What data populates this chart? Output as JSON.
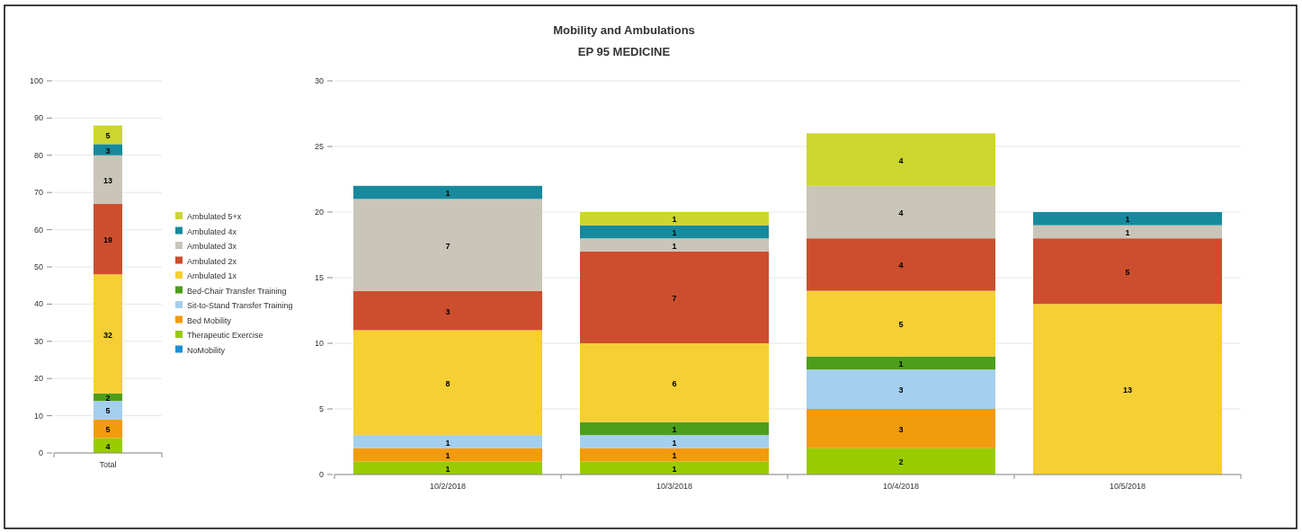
{
  "chart_data": [
    {
      "type": "bar",
      "stacked": true,
      "categories": [
        "Total"
      ],
      "ylim": [
        0,
        100
      ],
      "yticks": [
        0,
        10,
        20,
        30,
        40,
        50,
        60,
        70,
        80,
        90,
        100
      ],
      "grid": "y",
      "data_labels": true,
      "legend": "right",
      "series": [
        {
          "name": "NoMobility",
          "color": "#1a8fd6",
          "values": [
            null
          ]
        },
        {
          "name": "Therapeutic Exercise",
          "color": "#99cc00",
          "values": [
            4
          ]
        },
        {
          "name": "Bed Mobility",
          "color": "#f29b0c",
          "values": [
            5
          ]
        },
        {
          "name": "Sit-to-Stand Transfer Training",
          "color": "#a5cfee",
          "values": [
            5
          ]
        },
        {
          "name": "Bed-Chair Transfer Training",
          "color": "#4d9e1a",
          "values": [
            2
          ]
        },
        {
          "name": "Ambulated 1x",
          "color": "#f5cf33",
          "values": [
            32
          ]
        },
        {
          "name": "Ambulated 2x",
          "color": "#cc4e2e",
          "values": [
            19
          ]
        },
        {
          "name": "Ambulated 3x",
          "color": "#c9c5b9",
          "values": [
            13
          ]
        },
        {
          "name": "Ambulated 4x",
          "color": "#168a9c",
          "values": [
            3
          ]
        },
        {
          "name": "Ambulated 5+x",
          "color": "#ccd62e",
          "values": [
            5
          ]
        }
      ]
    },
    {
      "type": "bar",
      "stacked": true,
      "title": "Mobility and Ambulations",
      "subtitle": "EP 95 MEDICINE",
      "categories": [
        "10/2/2018",
        "10/3/2018",
        "10/4/2018",
        "10/5/2018"
      ],
      "ylim": [
        0,
        30
      ],
      "yticks": [
        0,
        5,
        10,
        15,
        20,
        25,
        30
      ],
      "grid": "y",
      "data_labels": true,
      "series": [
        {
          "color": "#99cc00",
          "values": [
            1,
            1,
            2,
            null
          ]
        },
        {
          "color": "#f29b0c",
          "values": [
            1,
            1,
            3,
            null
          ]
        },
        {
          "color": "#a5cfee",
          "values": [
            1,
            1,
            3,
            null
          ]
        },
        {
          "color": "#4d9e1a",
          "values": [
            null,
            1,
            1,
            null
          ]
        },
        {
          "color": "#f5cf33",
          "values": [
            8,
            6,
            5,
            13
          ]
        },
        {
          "color": "#cc4e2e",
          "values": [
            3,
            7,
            4,
            5
          ]
        },
        {
          "color": "#c9c5b9",
          "values": [
            7,
            1,
            4,
            1
          ]
        },
        {
          "color": "#168a9c",
          "values": [
            1,
            1,
            null,
            1
          ]
        },
        {
          "color": "#ccd62e",
          "values": [
            null,
            1,
            4,
            null
          ]
        }
      ]
    }
  ]
}
